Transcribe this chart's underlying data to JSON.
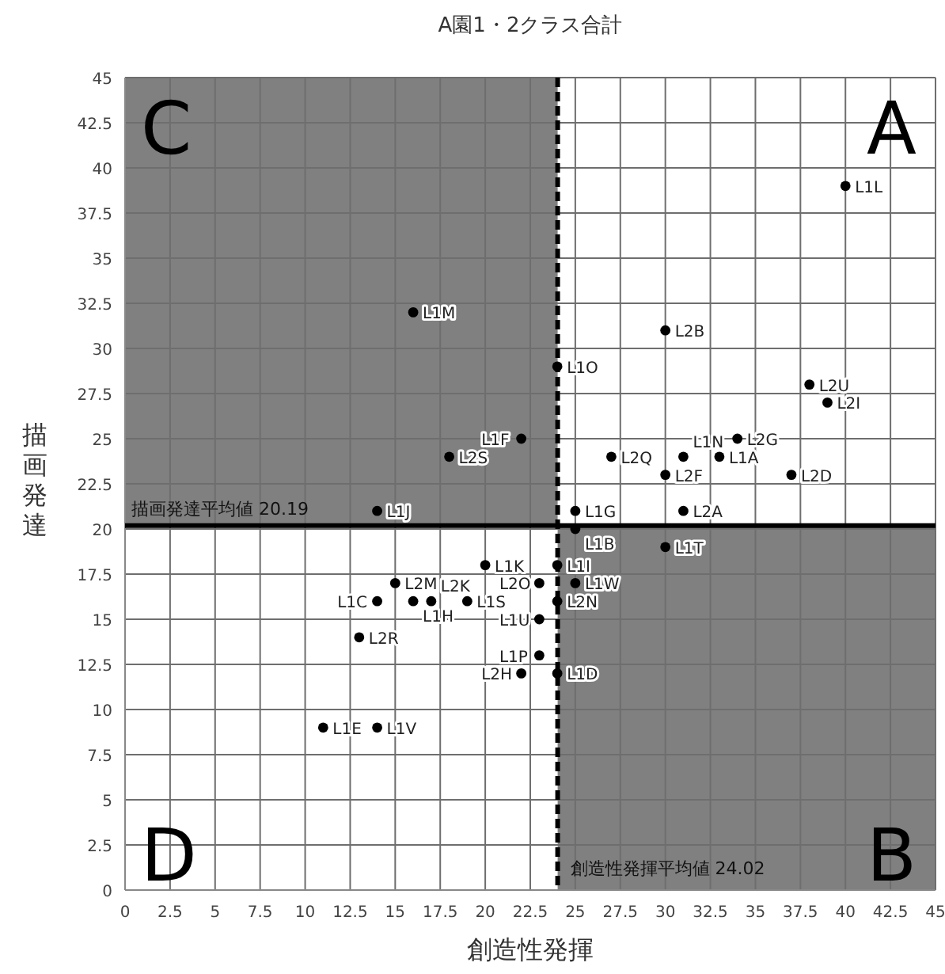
{
  "chart_data": {
    "type": "scatter",
    "title": "A園1・2クラス合計",
    "xlabel": "創造性発揮",
    "ylabel": "描画発達",
    "xlim": [
      0,
      45
    ],
    "ylim": [
      0,
      45
    ],
    "xticks": [
      0,
      2.5,
      5,
      7.5,
      10,
      12.5,
      15,
      17.5,
      20,
      22.5,
      25,
      27.5,
      30,
      32.5,
      35,
      37.5,
      40,
      42.5,
      45
    ],
    "yticks": [
      0,
      2.5,
      5,
      7.5,
      10,
      12.5,
      15,
      17.5,
      20,
      22.5,
      25,
      27.5,
      30,
      32.5,
      35,
      37.5,
      40,
      42.5,
      45
    ],
    "grid": true,
    "marker": "circle",
    "series": [
      {
        "color": "#000000",
        "x": [
          40,
          30,
          38,
          39,
          34,
          27,
          31,
          33,
          30,
          37,
          31,
          30,
          16,
          24,
          22,
          18,
          14,
          25,
          25,
          20,
          24,
          23,
          25,
          15,
          14,
          16,
          17,
          19,
          24,
          23,
          13,
          23,
          22,
          24,
          11,
          14
        ],
        "values": [
          39,
          31,
          28,
          27,
          25,
          24,
          24,
          24,
          23,
          23,
          21,
          19,
          32,
          29,
          25,
          24,
          21,
          21,
          20,
          18,
          18,
          17,
          17,
          17,
          16,
          16,
          16,
          16,
          16,
          15,
          14,
          13,
          12,
          12,
          9,
          9
        ]
      }
    ],
    "ref_lines": [
      {
        "axis": "x",
        "value": 24.02,
        "label": "創造性発揮平均値 24.02",
        "color": "#000000",
        "line_style": "dashed"
      },
      {
        "axis": "y",
        "value": 20.19,
        "label": "描画発達平均値 20.19",
        "color": "#000000",
        "line_style": "solid"
      }
    ],
    "annotations": [
      "A",
      "B",
      "C",
      "D",
      {
        "text": "L1L",
        "x": 40,
        "y": 39
      },
      {
        "text": "L2B",
        "x": 30,
        "y": 31
      },
      {
        "text": "L2U",
        "x": 38,
        "y": 28
      },
      {
        "text": "L2I",
        "x": 39,
        "y": 27
      },
      {
        "text": "L2G",
        "x": 34,
        "y": 25
      },
      {
        "text": "L2Q",
        "x": 27,
        "y": 24
      },
      {
        "text": "L1N",
        "x": 31,
        "y": 24
      },
      {
        "text": "L1A",
        "x": 33,
        "y": 24
      },
      {
        "text": "L2F",
        "x": 30,
        "y": 23
      },
      {
        "text": "L2D",
        "x": 37,
        "y": 23
      },
      {
        "text": "L2A",
        "x": 31,
        "y": 21
      },
      {
        "text": "L1T",
        "x": 30,
        "y": 19
      },
      {
        "text": "L1M",
        "x": 16,
        "y": 32
      },
      {
        "text": "L1O",
        "x": 24,
        "y": 29
      },
      {
        "text": "L1F",
        "x": 22,
        "y": 25
      },
      {
        "text": "L2S",
        "x": 18,
        "y": 24
      },
      {
        "text": "L1J",
        "x": 14,
        "y": 21
      },
      {
        "text": "L1G",
        "x": 25,
        "y": 21
      },
      {
        "text": "L1B",
        "x": 25,
        "y": 20
      },
      {
        "text": "L1K",
        "x": 20,
        "y": 18
      },
      {
        "text": "L1I",
        "x": 24,
        "y": 18
      },
      {
        "text": "L2O",
        "x": 23,
        "y": 17
      },
      {
        "text": "L1W",
        "x": 25,
        "y": 17
      },
      {
        "text": "L2M",
        "x": 15,
        "y": 17
      },
      {
        "text": "L1C",
        "x": 14,
        "y": 16
      },
      {
        "text": "L1H",
        "x": 16,
        "y": 16
      },
      {
        "text": "L2K",
        "x": 17,
        "y": 16
      },
      {
        "text": "L1S",
        "x": 19,
        "y": 16
      },
      {
        "text": "L2N",
        "x": 24,
        "y": 16
      },
      {
        "text": "L1U",
        "x": 23,
        "y": 15
      },
      {
        "text": "L2R",
        "x": 13,
        "y": 14
      },
      {
        "text": "L1P",
        "x": 23,
        "y": 13
      },
      {
        "text": "L2H",
        "x": 22,
        "y": 12
      },
      {
        "text": "L1D",
        "x": 24,
        "y": 12
      },
      {
        "text": "L1E",
        "x": 11,
        "y": 9
      },
      {
        "text": "L1V",
        "x": 14,
        "y": 9
      }
    ]
  }
}
